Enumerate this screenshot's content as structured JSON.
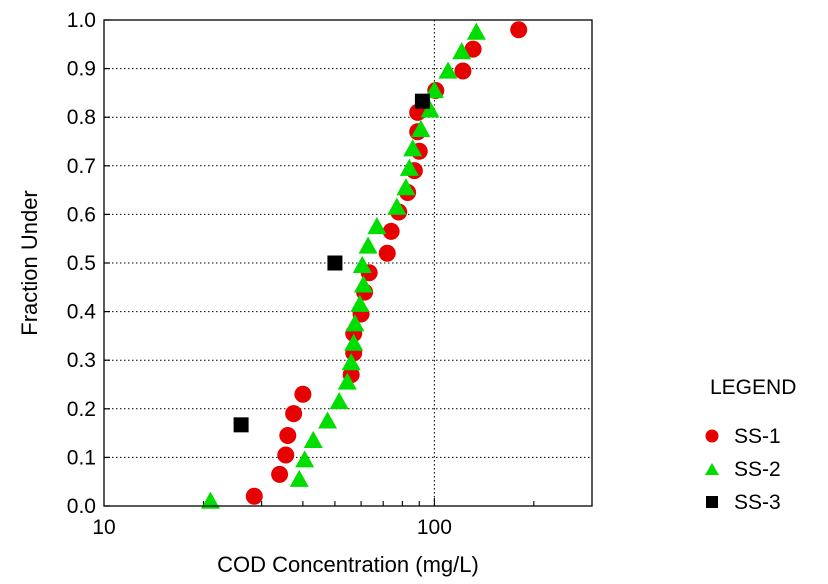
{
  "chart_data": {
    "type": "scatter",
    "xlabel": "COD Concentration (mg/L)",
    "ylabel": "Fraction Under",
    "xscale": "log",
    "xlim": [
      10,
      300
    ],
    "ylim": [
      0.0,
      1.0
    ],
    "x_ticks": [
      {
        "value": 10,
        "label": "10"
      },
      {
        "value": 100,
        "label": "100"
      }
    ],
    "y_ticks": [
      {
        "value": 0.0,
        "label": "0.0"
      },
      {
        "value": 0.1,
        "label": "0.1"
      },
      {
        "value": 0.2,
        "label": "0.2"
      },
      {
        "value": 0.3,
        "label": "0.3"
      },
      {
        "value": 0.4,
        "label": "0.4"
      },
      {
        "value": 0.5,
        "label": "0.5"
      },
      {
        "value": 0.6,
        "label": "0.6"
      },
      {
        "value": 0.7,
        "label": "0.7"
      },
      {
        "value": 0.8,
        "label": "0.8"
      },
      {
        "value": 0.9,
        "label": "0.9"
      },
      {
        "value": 1.0,
        "label": "1.0"
      }
    ],
    "grid": "dotted",
    "legend": {
      "title": "LEGEND",
      "placement": "right"
    },
    "series": [
      {
        "name": "SS-1",
        "marker": "circle",
        "color": "#e60000",
        "points": [
          [
            28.5,
            0.02
          ],
          [
            34.0,
            0.065
          ],
          [
            35.5,
            0.105
          ],
          [
            36.0,
            0.145
          ],
          [
            37.5,
            0.19
          ],
          [
            40.0,
            0.23
          ],
          [
            56.0,
            0.27
          ],
          [
            57.0,
            0.315
          ],
          [
            57.0,
            0.355
          ],
          [
            60.0,
            0.395
          ],
          [
            61.5,
            0.44
          ],
          [
            63.5,
            0.48
          ],
          [
            72.0,
            0.52
          ],
          [
            74.0,
            0.565
          ],
          [
            78.0,
            0.605
          ],
          [
            83.0,
            0.645
          ],
          [
            87.0,
            0.69
          ],
          [
            90.0,
            0.73
          ],
          [
            89.0,
            0.77
          ],
          [
            89.0,
            0.81
          ],
          [
            101.0,
            0.855
          ],
          [
            122.0,
            0.895
          ],
          [
            131.0,
            0.94
          ],
          [
            180.0,
            0.98
          ]
        ]
      },
      {
        "name": "SS-2",
        "marker": "triangle",
        "color": "#00dd00",
        "points": [
          [
            21.0,
            0.01
          ],
          [
            39.0,
            0.055
          ],
          [
            40.5,
            0.095
          ],
          [
            43.0,
            0.135
          ],
          [
            47.5,
            0.175
          ],
          [
            51.5,
            0.215
          ],
          [
            54.5,
            0.255
          ],
          [
            56.0,
            0.295
          ],
          [
            57.0,
            0.335
          ],
          [
            57.5,
            0.375
          ],
          [
            59.5,
            0.415
          ],
          [
            61.0,
            0.455
          ],
          [
            60.5,
            0.495
          ],
          [
            63.0,
            0.535
          ],
          [
            67.0,
            0.575
          ],
          [
            77.0,
            0.615
          ],
          [
            82.0,
            0.655
          ],
          [
            84.0,
            0.695
          ],
          [
            86.0,
            0.735
          ],
          [
            91.0,
            0.775
          ],
          [
            97.0,
            0.815
          ],
          [
            100.0,
            0.855
          ],
          [
            110.0,
            0.895
          ],
          [
            121.0,
            0.935
          ],
          [
            134.0,
            0.975
          ]
        ]
      },
      {
        "name": "SS-3",
        "marker": "square",
        "color": "#000000",
        "points": [
          [
            26.0,
            0.167
          ],
          [
            50.0,
            0.5
          ],
          [
            92.0,
            0.833
          ]
        ]
      }
    ]
  }
}
